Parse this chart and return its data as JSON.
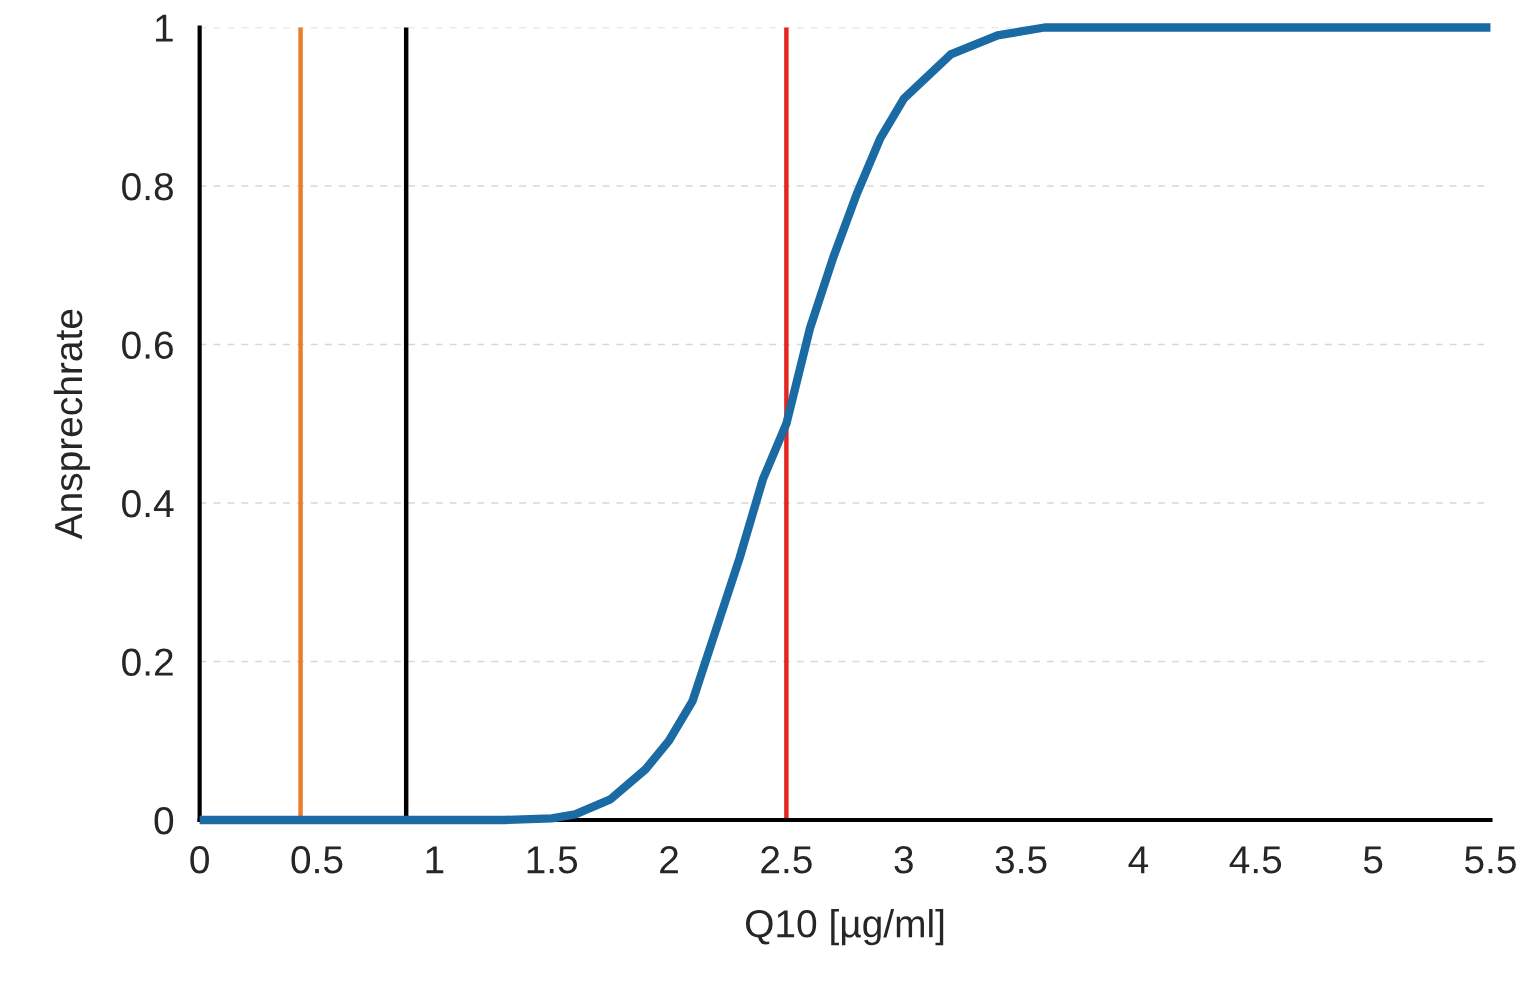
{
  "chart_data": {
    "type": "line",
    "xlabel": "Q10 [µg/ml]",
    "ylabel": "Ansprechrate",
    "x": [
      0,
      0.5,
      1,
      1.3,
      1.5,
      1.6,
      1.75,
      1.9,
      2.0,
      2.1,
      2.2,
      2.3,
      2.4,
      2.5,
      2.6,
      2.7,
      2.8,
      2.9,
      3.0,
      3.2,
      3.4,
      3.6,
      4,
      4.5,
      5,
      5.5
    ],
    "series": [
      {
        "color": "#1a6aa3",
        "values": [
          0,
          0,
          0,
          0,
          0.002,
          0.007,
          0.026,
          0.064,
          0.1,
          0.15,
          0.24,
          0.33,
          0.43,
          0.5,
          0.62,
          0.71,
          0.79,
          0.86,
          0.91,
          0.966,
          0.99,
          1,
          1,
          1,
          1,
          1
        ]
      }
    ],
    "xlim": [
      0,
      5.5
    ],
    "xticks": [
      0,
      0.5,
      1,
      1.5,
      2,
      2.5,
      3,
      3.5,
      4,
      4.5,
      5,
      5.5
    ],
    "ylim": [
      0,
      1
    ],
    "yticks": [
      0,
      0.2,
      0.4,
      0.6,
      0.8,
      1
    ],
    "grid": "y",
    "marker": "none",
    "line_style": "solid",
    "ref_lines": [
      {
        "axis": "x",
        "value": 0.43,
        "color": "#e87d2a"
      },
      {
        "axis": "x",
        "value": 0.88,
        "color": "#000000"
      },
      {
        "axis": "x",
        "value": 2.5,
        "color": "#e3261f"
      }
    ]
  }
}
